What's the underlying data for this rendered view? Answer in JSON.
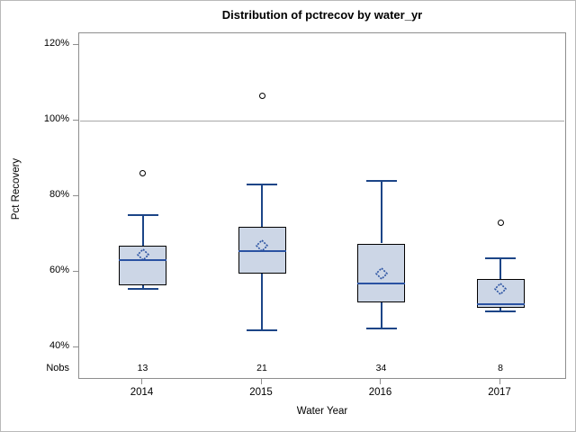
{
  "chart_data": {
    "type": "box",
    "title": "Distribution of pctrecov by water_yr",
    "xlabel": "Water Year",
    "ylabel": "Pct Recovery",
    "nobs_label": "Nobs",
    "y_axis": {
      "tick_values": [
        120,
        100,
        80,
        60,
        40
      ],
      "tick_labels": [
        "120%",
        "100%",
        "80%",
        "60%",
        "40%"
      ],
      "ylim": [
        40,
        120
      ],
      "grid": false
    },
    "reference_line_value": 100,
    "categories": [
      "2014",
      "2015",
      "2016",
      "2017"
    ],
    "nobs": [
      "13",
      "21",
      "34",
      "8"
    ],
    "series": [
      {
        "category": "2014",
        "n": 13,
        "whisker_low": 55.5,
        "q1": 56.5,
        "median": 63,
        "mean": 64.5,
        "q3": 67,
        "whisker_high": 75,
        "outliers": [
          86
        ]
      },
      {
        "category": "2015",
        "n": 21,
        "whisker_low": 44.5,
        "q1": 59.5,
        "median": 65.5,
        "mean": 67,
        "q3": 72,
        "whisker_high": 83,
        "outliers": [
          106.5
        ]
      },
      {
        "category": "2016",
        "n": 34,
        "whisker_low": 45,
        "q1": 52,
        "median": 57,
        "mean": 59.5,
        "q3": 67.5,
        "whisker_high": 84,
        "outliers": []
      },
      {
        "category": "2017",
        "n": 8,
        "whisker_low": 49.5,
        "q1": 50.5,
        "median": 51.5,
        "mean": 55.5,
        "q3": 58,
        "whisker_high": 63.5,
        "outliers": [
          73
        ]
      }
    ],
    "colors": {
      "box_fill": "#ccd6e6",
      "box_border": "#000000",
      "median_line": "#2a52a2",
      "whisker_line": "#1c4587",
      "mean_marker": "#2a52a2",
      "outlier": "#000000",
      "reference_line": "#a8a8a8",
      "frame": "#8e8e8e",
      "text": "#000000",
      "background": "#ffffff"
    }
  }
}
